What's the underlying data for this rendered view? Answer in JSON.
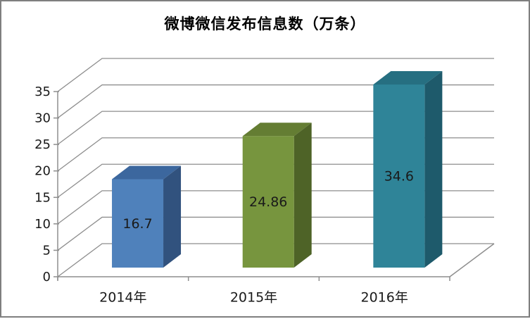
{
  "frame": {
    "background": "#ffffff",
    "border_color": "#7f7f7f"
  },
  "chart_data": {
    "type": "bar",
    "variant": "3d-column",
    "title": "微博微信发布信息数（万条）",
    "categories": [
      "2014年",
      "2015年",
      "2016年"
    ],
    "values": [
      16.7,
      24.86,
      34.6
    ],
    "data_labels": [
      "16.7",
      "24.86",
      "34.6"
    ],
    "series_colors": [
      {
        "front": "#4f81bb",
        "top": "#3c679e",
        "side": "#31527e"
      },
      {
        "front": "#77953e",
        "top": "#647d33",
        "side": "#4e6327"
      },
      {
        "front": "#2f8498",
        "top": "#266f81",
        "side": "#1e5a6b"
      }
    ],
    "xlabel": "",
    "ylabel": "",
    "ylim": [
      0,
      35
    ],
    "ytick_step": 5,
    "yticks": [
      0,
      5,
      10,
      15,
      20,
      25,
      30,
      35
    ],
    "grid": true,
    "legend_position": "none",
    "gridline_color": "#8e8e8e",
    "axis_color": "#8e8e8e",
    "label_color": "#1a1a1a"
  }
}
